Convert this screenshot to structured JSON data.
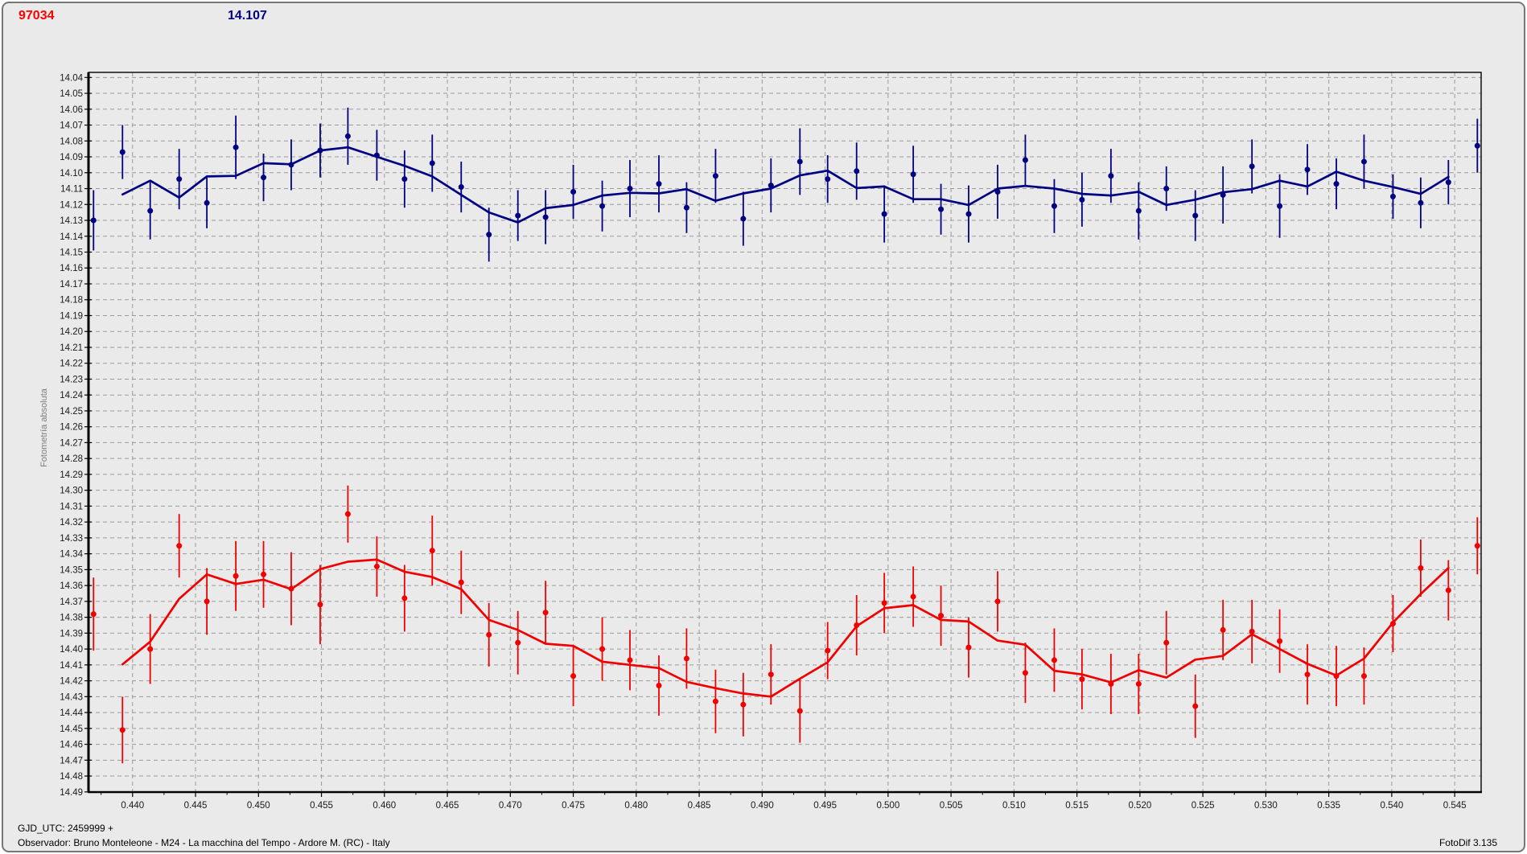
{
  "header": {
    "object_id": "97034",
    "object_id_color": "#ff0000",
    "mean_magnitude": "14.107",
    "mean_magnitude_color": "#000080"
  },
  "footer": {
    "gjd_utc": "GJD_UTC: 2459999 +",
    "observer": "Observador: Bruno Monteleone - M24 - La macchina del Tempo - Ardore M. (RC) - Italy",
    "app_version": "FotoDif 3.135"
  },
  "chart_data": {
    "type": "scatter",
    "title": "",
    "xlabel": "",
    "ylabel": "Fotometría absoluta",
    "grid": true,
    "legend_position": "none",
    "background": "#eaeaea",
    "grid_color": "#9a9a9a",
    "axis_color": "#000000",
    "tick_label_color": "#1a1a1a",
    "x_axis": {
      "range": [
        0.4365,
        0.5471
      ],
      "tick_start": 0.44,
      "tick_end": 0.545,
      "tick_step": 0.005,
      "minor_tick_step": 0.0025,
      "decimals": 3
    },
    "y_axis": {
      "range": [
        14.0368,
        14.4901
      ],
      "tick_start": 14.04,
      "tick_end": 14.49,
      "tick_step": 0.01,
      "decimals": 2,
      "inverted_magnitude_scale": true
    },
    "trend": "3-point centered moving average per series",
    "x": [
      0.4369,
      0.4392,
      0.4414,
      0.4437,
      0.4459,
      0.4482,
      0.4504,
      0.4526,
      0.4549,
      0.4571,
      0.4594,
      0.4616,
      0.4638,
      0.4661,
      0.4683,
      0.4706,
      0.4728,
      0.475,
      0.4773,
      0.4795,
      0.4818,
      0.484,
      0.4863,
      0.4885,
      0.4907,
      0.493,
      0.4952,
      0.4975,
      0.4997,
      0.502,
      0.5042,
      0.5064,
      0.5087,
      0.5109,
      0.5132,
      0.5154,
      0.5177,
      0.5199,
      0.5221,
      0.5244,
      0.5266,
      0.5289,
      0.5311,
      0.5333,
      0.5356,
      0.5378,
      0.5401,
      0.5423,
      0.5445,
      0.5468
    ],
    "series": [
      {
        "name": "blue series (upper, reference photometry)",
        "color": "#000080",
        "marker": "circle",
        "error_bars": true,
        "values": [
          14.13,
          14.087,
          14.124,
          14.104,
          14.119,
          14.084,
          14.103,
          14.095,
          14.086,
          14.077,
          14.089,
          14.104,
          14.094,
          14.109,
          14.139,
          14.127,
          14.128,
          14.112,
          14.121,
          14.11,
          14.107,
          14.122,
          14.102,
          14.129,
          14.108,
          14.093,
          14.104,
          14.099,
          14.126,
          14.101,
          14.123,
          14.126,
          14.112,
          14.092,
          14.121,
          14.117,
          14.102,
          14.124,
          14.11,
          14.127,
          14.114,
          14.096,
          14.121,
          14.098,
          14.107,
          14.093,
          14.115,
          14.119,
          14.106,
          14.083
        ],
        "errors": [
          0.019,
          0.017,
          0.018,
          0.019,
          0.016,
          0.02,
          0.015,
          0.016,
          0.017,
          0.018,
          0.016,
          0.018,
          0.018,
          0.016,
          0.017,
          0.016,
          0.017,
          0.017,
          0.016,
          0.018,
          0.018,
          0.016,
          0.017,
          0.017,
          0.017,
          0.021,
          0.015,
          0.018,
          0.018,
          0.018,
          0.016,
          0.018,
          0.017,
          0.016,
          0.017,
          0.017,
          0.017,
          0.018,
          0.014,
          0.016,
          0.018,
          0.017,
          0.02,
          0.016,
          0.016,
          0.017,
          0.014,
          0.016,
          0.014,
          0.017
        ]
      },
      {
        "name": "red series (lower, target 97034 photometry)",
        "color": "#f10000",
        "marker": "circle",
        "error_bars": true,
        "values": [
          14.378,
          14.451,
          14.4,
          14.335,
          14.37,
          14.354,
          14.353,
          14.362,
          14.372,
          14.315,
          14.348,
          14.368,
          14.338,
          14.358,
          14.391,
          14.396,
          14.377,
          14.417,
          14.4,
          14.407,
          14.423,
          14.406,
          14.433,
          14.435,
          14.416,
          14.439,
          14.401,
          14.385,
          14.371,
          14.367,
          14.379,
          14.399,
          14.37,
          14.415,
          14.407,
          14.419,
          14.422,
          14.422,
          14.396,
          14.436,
          14.388,
          14.389,
          14.395,
          14.416,
          14.417,
          14.417,
          14.384,
          14.349,
          14.363,
          14.335
        ],
        "errors": [
          0.023,
          0.021,
          0.022,
          0.02,
          0.021,
          0.022,
          0.021,
          0.023,
          0.025,
          0.018,
          0.019,
          0.021,
          0.022,
          0.02,
          0.02,
          0.02,
          0.02,
          0.019,
          0.02,
          0.019,
          0.019,
          0.019,
          0.02,
          0.02,
          0.019,
          0.02,
          0.018,
          0.019,
          0.019,
          0.019,
          0.019,
          0.019,
          0.019,
          0.019,
          0.02,
          0.019,
          0.019,
          0.019,
          0.02,
          0.02,
          0.019,
          0.02,
          0.02,
          0.019,
          0.019,
          0.018,
          0.018,
          0.018,
          0.019,
          0.018
        ]
      }
    ]
  }
}
